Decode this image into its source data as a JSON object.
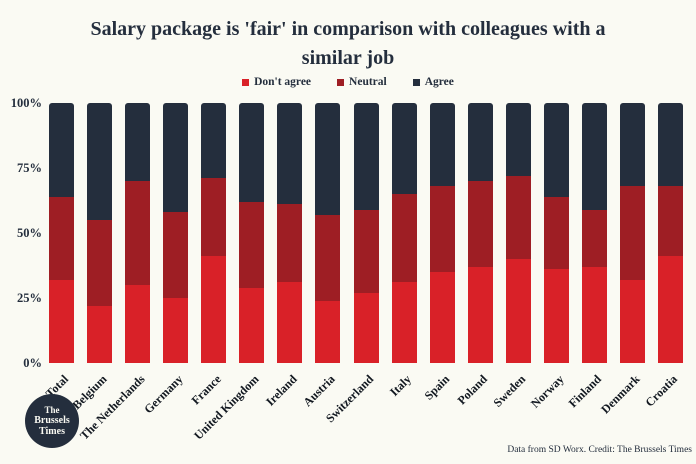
{
  "title": {
    "line1": "Salary package is 'fair' in comparison with colleagues with a",
    "line2": "similar job"
  },
  "legend": {
    "items": [
      {
        "label": "Don't agree",
        "color": "#d92128"
      },
      {
        "label": "Neutral",
        "color": "#9e1e24"
      },
      {
        "label": "Agree",
        "color": "#242e3d"
      }
    ]
  },
  "chart_data": {
    "type": "bar",
    "stacked": true,
    "title": "Salary package is 'fair' in comparison with colleagues with a similar job",
    "xlabel": "",
    "ylabel": "",
    "ylim": [
      0,
      100
    ],
    "y_ticks": [
      "0%",
      "25%",
      "50%",
      "75%",
      "100%"
    ],
    "grid": false,
    "legend_position": "top",
    "categories": [
      "Total",
      "Belgium",
      "The Netherlands",
      "Germany",
      "France",
      "United Kingdom",
      "Ireland",
      "Austria",
      "Switzerland",
      "Italy",
      "Spain",
      "Poland",
      "Sweden",
      "Norway",
      "Finland",
      "Denmark",
      "Croatia"
    ],
    "series": [
      {
        "name": "Don't agree",
        "color": "#d92128",
        "values": [
          32,
          22,
          30,
          25,
          41,
          29,
          31,
          24,
          27,
          31,
          35,
          37,
          40,
          36,
          37,
          32,
          41
        ]
      },
      {
        "name": "Neutral",
        "color": "#9e1e24",
        "values": [
          32,
          33,
          40,
          33,
          30,
          33,
          30,
          33,
          32,
          34,
          33,
          33,
          32,
          28,
          22,
          36,
          27
        ]
      },
      {
        "name": "Agree",
        "color": "#242e3d",
        "values": [
          36,
          45,
          30,
          42,
          29,
          38,
          39,
          43,
          41,
          35,
          32,
          30,
          28,
          36,
          41,
          32,
          32
        ]
      }
    ]
  },
  "colors": {
    "background": "#fafaf3",
    "title_text": "#242e3d",
    "axis_text": "#121820"
  },
  "logo": {
    "line1": "The",
    "line2": "Brussels",
    "line3": "Times"
  },
  "footer": {
    "credit": "Data from SD Worx. Credit: The Brussels Times"
  }
}
